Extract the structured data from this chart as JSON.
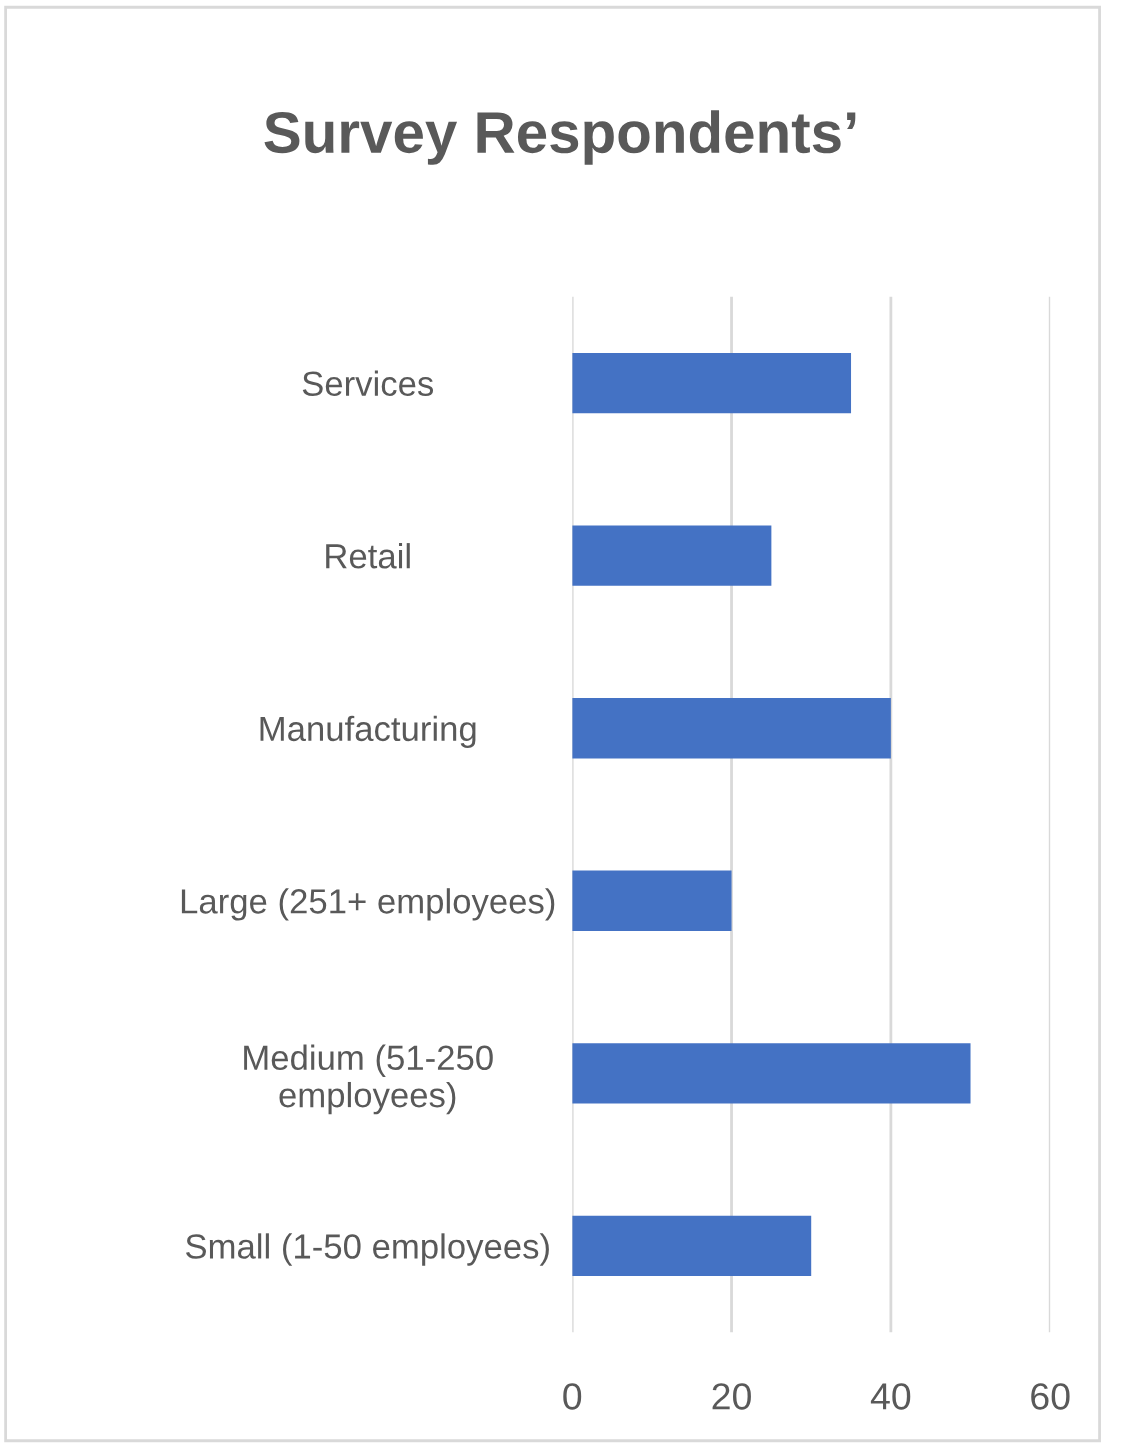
{
  "chart_data": {
    "type": "bar",
    "orientation": "horizontal",
    "title": "Survey Respondents’",
    "categories": [
      "Services",
      "Retail",
      "Manufacturing",
      "Large (251+ employees)",
      "Medium (51-250\nemployees)",
      "Small (1-50 employees)"
    ],
    "values": [
      35,
      25,
      40,
      20,
      50,
      30
    ],
    "color": "#4472c4",
    "xlim": [
      0,
      60
    ],
    "xticks": [
      0,
      20,
      40,
      60
    ],
    "grid": "x",
    "legend": false
  }
}
